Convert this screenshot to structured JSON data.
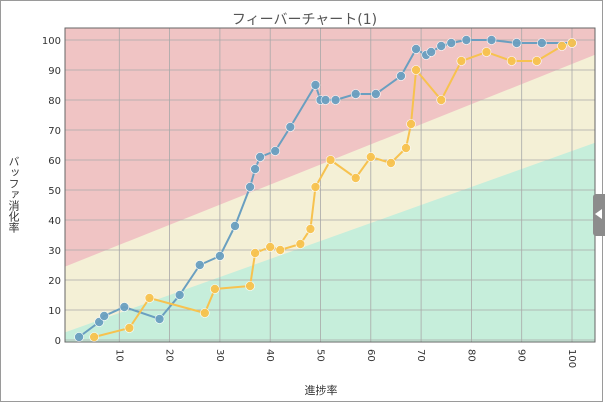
{
  "chart_data": {
    "type": "line",
    "title": "フィーバーチャート(1)",
    "xlabel": "進捗率",
    "ylabel": "バッファ消化率",
    "xlim": [
      0,
      100
    ],
    "ylim": [
      0,
      100
    ],
    "x_ticks": [
      10,
      20,
      30,
      40,
      50,
      60,
      70,
      80,
      90,
      100
    ],
    "y_ticks": [
      0,
      10,
      20,
      30,
      40,
      50,
      60,
      70,
      80,
      90,
      100
    ],
    "grid": true,
    "zones": {
      "red": "#f0c4c4",
      "yellow": "#f4f0d6",
      "green": "#c6eedb",
      "red_boundary": [
        [
          0,
          25
        ],
        [
          100,
          92
        ]
      ],
      "green_boundary": [
        [
          0,
          3
        ],
        [
          100,
          63
        ]
      ]
    },
    "series": [
      {
        "color": "#6a9fc0",
        "x": [
          2,
          6,
          7,
          11,
          18,
          22,
          26,
          30,
          33,
          36,
          37,
          38,
          41,
          44,
          49,
          50,
          51,
          53,
          57,
          61,
          66,
          69,
          71,
          72,
          74,
          76,
          79,
          84,
          89,
          94,
          100
        ],
        "y": [
          1,
          6,
          8,
          11,
          7,
          15,
          25,
          28,
          38,
          51,
          57,
          61,
          63,
          71,
          85,
          80,
          80,
          80,
          82,
          82,
          88,
          97,
          95,
          96,
          98,
          99,
          100,
          100,
          99,
          99,
          99
        ]
      },
      {
        "color": "#f7c24f",
        "x": [
          5,
          12,
          16,
          27,
          29,
          36,
          37,
          40,
          42,
          46,
          48,
          49,
          52,
          57,
          60,
          64,
          67,
          68,
          69,
          74,
          78,
          83,
          88,
          93,
          98,
          100
        ],
        "y": [
          1,
          4,
          14,
          9,
          17,
          18,
          29,
          31,
          30,
          32,
          37,
          51,
          60,
          54,
          61,
          59,
          64,
          72,
          90,
          80,
          93,
          96,
          93,
          93,
          98,
          99
        ]
      }
    ]
  }
}
